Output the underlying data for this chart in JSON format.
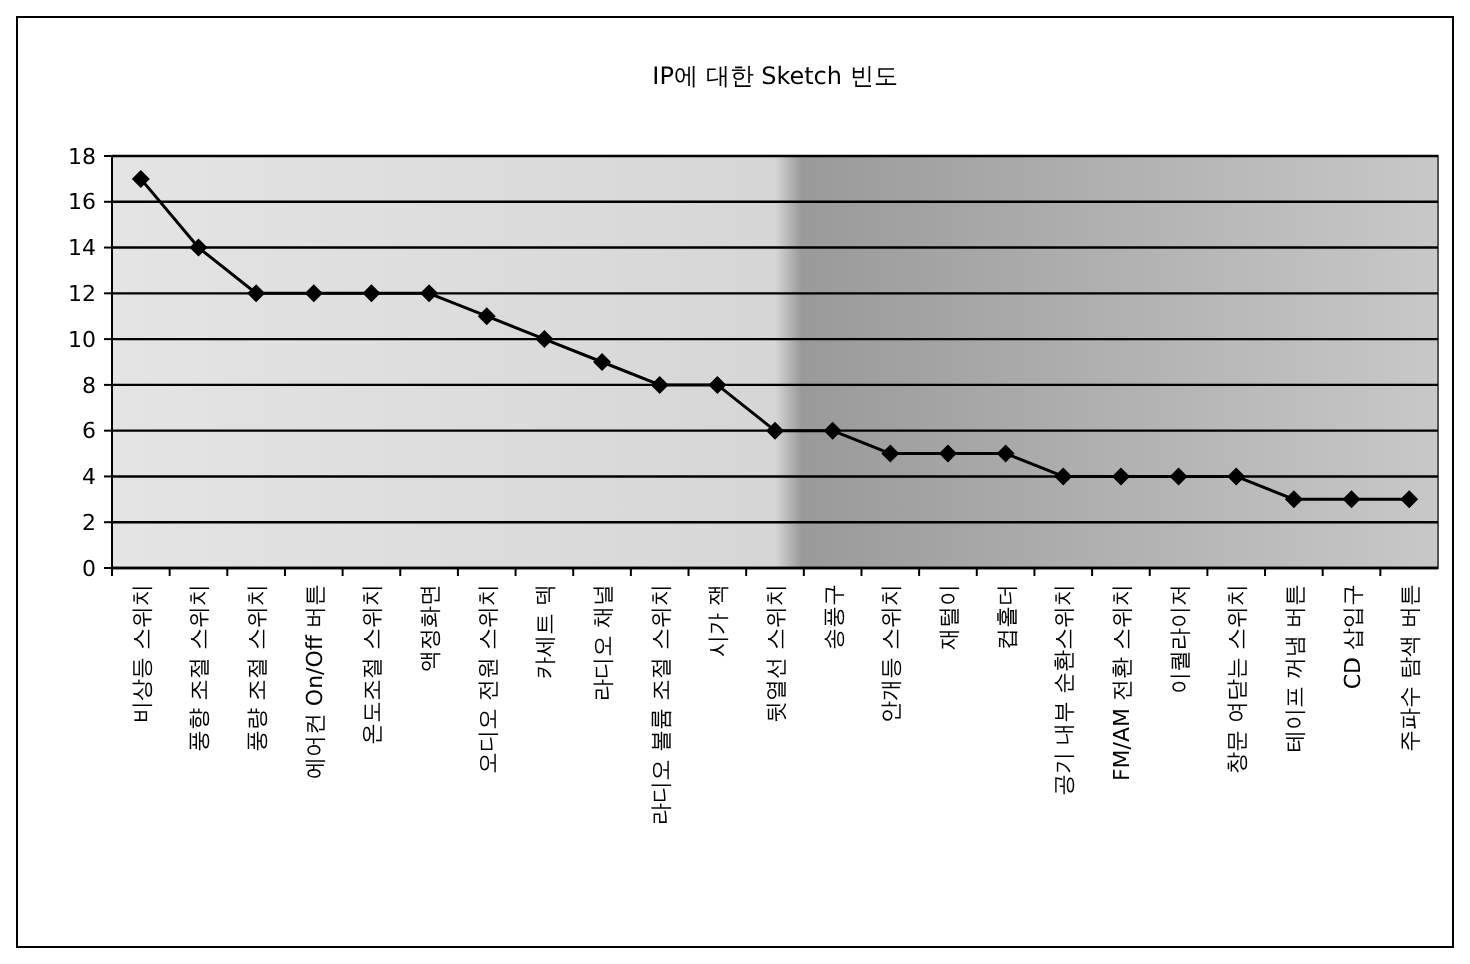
{
  "chart_data": {
    "type": "line",
    "title": "IP에 대한 Sketch 빈도",
    "categories": [
      "비상등 스위치",
      "풍향 조절 스위치",
      "풍량 조절 스위치",
      "에어컨 On/Off 버튼",
      "온도조절 스위치",
      "액정화면",
      "오디오 전원 스위치",
      "카세트 덱",
      "라디오 채널",
      "라디오 볼륨 조절 스위치",
      "시가 잭",
      "뒷열선 스위치",
      "송풍구",
      "안개등 스위치",
      "재털이",
      "컵홀더",
      "공기 내부 순환스위치",
      "FM/AM 전환 스위치",
      "이퀄라이저",
      "창문 여닫는 스위치",
      "테이프 꺼냄 버튼",
      "CD 삽입구",
      "주파수 탐색 버튼"
    ],
    "series": [
      {
        "color": "#000000",
        "values": [
          17,
          14,
          12,
          12,
          12,
          12,
          11,
          10,
          9,
          8,
          8,
          6,
          6,
          5,
          5,
          5,
          4,
          4,
          4,
          4,
          3,
          3,
          3
        ]
      }
    ],
    "ylim": [
      0,
      18
    ],
    "yticks": [
      0,
      2,
      4,
      6,
      8,
      10,
      12,
      14,
      16,
      18
    ],
    "grid": "y",
    "marker": "diamond",
    "line_style": "solid"
  }
}
